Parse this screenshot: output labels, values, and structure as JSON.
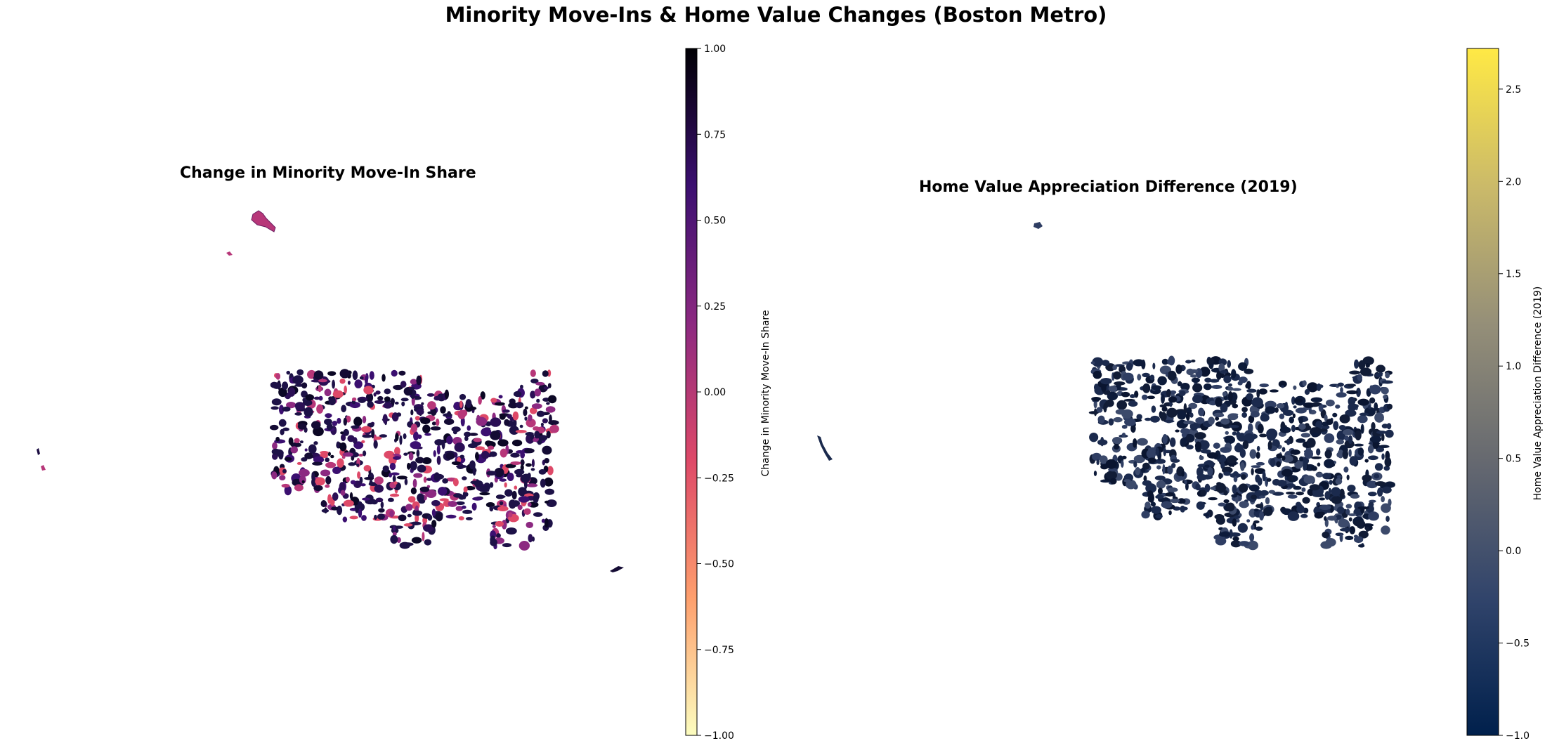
{
  "figure": {
    "title": "Minority Move-Ins & Home Value Changes (Boston Metro)"
  },
  "maps": [
    {
      "title": "Change in Minority Move-In Share",
      "colorbar": {
        "label": "Change in Minority Move-In Share",
        "colormap": "magma_r",
        "range": [
          -1.0,
          1.0
        ],
        "ticks": [
          "−1.00",
          "−0.75",
          "−0.50",
          "−0.25",
          "0.00",
          "0.25",
          "0.50",
          "0.75",
          "1.00"
        ],
        "tick_values": [
          -1.0,
          -0.75,
          -0.5,
          -0.25,
          0.0,
          0.25,
          0.5,
          0.75,
          1.0
        ],
        "colors": [
          "#fcfdbf",
          "#fe9f6d",
          "#de4968",
          "#8c2981",
          "#3b0f70",
          "#000004"
        ]
      }
    },
    {
      "title": "Home Value Appreciation Difference (2019)",
      "colorbar": {
        "label": "Home Value Appreciation Difference (2019)",
        "colormap": "cividis",
        "range": [
          -1.0,
          2.72
        ],
        "ticks": [
          "−1.0",
          "−0.5",
          "0.0",
          "0.5",
          "1.0",
          "1.5",
          "2.0",
          "2.5"
        ],
        "tick_values": [
          -1.0,
          -0.5,
          0.0,
          0.5,
          1.0,
          1.5,
          2.0,
          2.5
        ],
        "colors": [
          "#00204c",
          "#31446b",
          "#666970",
          "#958f78",
          "#cbba69",
          "#ffe945"
        ]
      }
    }
  ]
}
